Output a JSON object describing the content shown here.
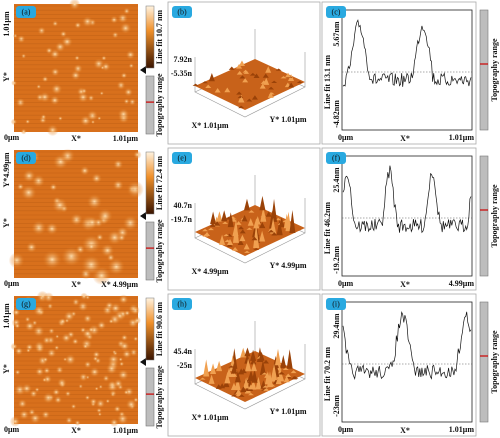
{
  "rows": [
    {
      "afm": {
        "label": "(a)",
        "y_top": "1.01μm",
        "y_axis": "Y*",
        "y_bottom": "0μm",
        "x_axis": "X*",
        "x_right": "1.01μm",
        "colorbar": "Line fit 10.7 nm",
        "range": "Topography range"
      },
      "view3d": {
        "label": "(b)",
        "z_top": "7.92n",
        "z_bottom": "-5.35n",
        "x_axis": "X* 1.01μm",
        "y_axis": "Y* 1.01μm"
      },
      "profile": {
        "label": "(c)",
        "y_top": "5.67nm",
        "y_bottom": "-4.82nm",
        "y_axis": "Line fit 13.1 nm",
        "x_left": "0μm",
        "x_axis": "X*",
        "x_right": "1.01μm",
        "range": "Topography range"
      }
    },
    {
      "afm": {
        "label": "(d)",
        "y_top": "Y*4.99μm",
        "y_axis": "Y*",
        "y_bottom": "0μm",
        "x_axis": "X*",
        "x_right": "X* 4.99μm",
        "colorbar": "Line fit 72.4 nm",
        "range": "Topography range"
      },
      "view3d": {
        "label": "(e)",
        "z_top": "40.7n",
        "z_bottom": "-19.7n",
        "x_axis": "X* 4.99μm",
        "y_axis": "Y* 4.99μm"
      },
      "profile": {
        "label": "(f)",
        "y_top": "25.4nm",
        "y_bottom": "-19.2nm",
        "y_axis": "Line fit 46.2nm",
        "x_left": "0μm",
        "x_axis": "X*",
        "x_right": "4.99μm",
        "range": "Topography range"
      }
    },
    {
      "afm": {
        "label": "(g)",
        "y_top": "1.01μm",
        "y_axis": "Y*",
        "y_bottom": "0μm",
        "x_axis": "X*",
        "x_right": "1.01μm",
        "colorbar": "Line fit 90.6 nm",
        "range": "Topography range"
      },
      "view3d": {
        "label": "(h)",
        "z_top": "45.4n",
        "z_bottom": "-25n",
        "x_axis": "X* 1.01μm",
        "y_axis": "Y* 1.01μm"
      },
      "profile": {
        "label": "(i)",
        "y_top": "29.4nm",
        "y_bottom": "-23nm",
        "y_axis": "Line fit 70.2 nm",
        "x_left": "0μm",
        "x_axis": "X*",
        "x_right": "1.01μm",
        "range": "Topography range"
      }
    }
  ]
}
